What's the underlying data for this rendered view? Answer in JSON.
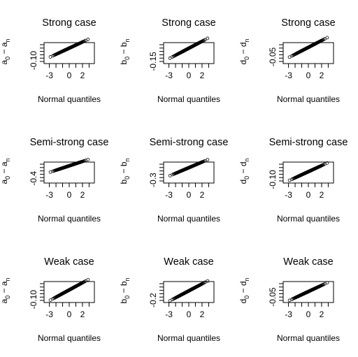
{
  "chart_data": [
    {
      "type": "scatter",
      "title": "Strong case",
      "xlabel": "Normal quantiles",
      "ylabel": "a0 - an",
      "ylabel_main": "a",
      "ylabel_sub0": "0",
      "ylabel_minus": " − ",
      "ylabel_sub1": "n",
      "x_ticks": [
        "-3",
        "0",
        "2"
      ],
      "y_ticks": [
        "-0.10"
      ],
      "xlim": [
        -3.8,
        3.8
      ],
      "ylim": [
        -0.125,
        0.045
      ],
      "y_tick_values": [
        -0.1
      ],
      "n_points": 220,
      "center": 0.0,
      "scale": 0.025
    },
    {
      "type": "scatter",
      "title": "Strong case",
      "xlabel": "Normal quantiles",
      "ylabel": "b0 - bn",
      "ylabel_main": "b",
      "ylabel_sub0": "0",
      "ylabel_minus": " − ",
      "ylabel_sub1": "n",
      "x_ticks": [
        "-3",
        "0",
        "2"
      ],
      "y_ticks": [
        "-0.15"
      ],
      "xlim": [
        -3.8,
        3.8
      ],
      "ylim": [
        -0.175,
        0.065
      ],
      "y_tick_values": [
        -0.15
      ],
      "n_points": 220,
      "center": 0.0,
      "scale": 0.04
    },
    {
      "type": "scatter",
      "title": "Strong case",
      "xlabel": "Normal quantiles",
      "ylabel": "d0 - dn",
      "ylabel_main": "d",
      "ylabel_sub0": "0",
      "ylabel_minus": " − ",
      "ylabel_sub1": "n",
      "x_ticks": [
        "-3",
        "0",
        "2"
      ],
      "y_ticks": [
        "-0.05"
      ],
      "xlim": [
        -3.8,
        3.8
      ],
      "ylim": [
        -0.085,
        0.025
      ],
      "y_tick_values": [
        -0.05
      ],
      "n_points": 220,
      "center": 0.0,
      "scale": 0.018
    },
    {
      "type": "scatter",
      "title": "Semi-strong case",
      "xlabel": "Normal quantiles",
      "ylabel": "a0 - an",
      "ylabel_main": "a",
      "ylabel_sub0": "0",
      "ylabel_minus": " − ",
      "ylabel_sub1": "n",
      "x_ticks": [
        "-3",
        "0",
        "2"
      ],
      "y_ticks": [
        "-0.4"
      ],
      "xlim": [
        -3.8,
        3.8
      ],
      "ylim": [
        -0.55,
        0.12
      ],
      "y_tick_values": [
        -0.4
      ],
      "n_points": 220,
      "center": 0.0,
      "scale": 0.07
    },
    {
      "type": "scatter",
      "title": "Semi-strong case",
      "xlabel": "Normal quantiles",
      "ylabel": "b0 - bn",
      "ylabel_main": "b",
      "ylabel_sub0": "0",
      "ylabel_minus": " − ",
      "ylabel_sub1": "n",
      "x_ticks": [
        "-3",
        "0",
        "2"
      ],
      "y_ticks": [
        "-0.3"
      ],
      "xlim": [
        -3.8,
        3.8
      ],
      "ylim": [
        -0.36,
        0.05
      ],
      "y_tick_values": [
        -0.3
      ],
      "n_points": 220,
      "center": -0.06,
      "scale": 0.055
    },
    {
      "type": "scatter",
      "title": "Semi-strong case",
      "xlabel": "Normal quantiles",
      "ylabel": "d0 - dn",
      "ylabel_main": "d",
      "ylabel_sub0": "0",
      "ylabel_minus": " − ",
      "ylabel_sub1": "n",
      "x_ticks": [
        "-3",
        "0",
        "2"
      ],
      "y_ticks": [
        "-0.10"
      ],
      "xlim": [
        -3.8,
        3.8
      ],
      "ylim": [
        -0.14,
        0.1
      ],
      "y_tick_values": [
        -0.1
      ],
      "n_points": 220,
      "center": -0.01,
      "scale": 0.035
    },
    {
      "type": "scatter",
      "title": "Weak case",
      "xlabel": "Normal quantiles",
      "ylabel": "a0 - an",
      "ylabel_main": "a",
      "ylabel_sub0": "0",
      "ylabel_minus": " − ",
      "ylabel_sub1": "n",
      "x_ticks": [
        "-3",
        "0",
        "2"
      ],
      "y_ticks": [
        "-0.10"
      ],
      "xlim": [
        -3.8,
        3.8
      ],
      "ylim": [
        -0.125,
        0.05
      ],
      "y_tick_values": [
        -0.1
      ],
      "n_points": 220,
      "center": -0.02,
      "scale": 0.03
    },
    {
      "type": "scatter",
      "title": "Weak case",
      "xlabel": "Normal quantiles",
      "ylabel": "b0 - bn",
      "ylabel_main": "b",
      "ylabel_sub0": "0",
      "ylabel_minus": " − ",
      "ylabel_sub1": "n",
      "x_ticks": [
        "-3",
        "0",
        "2"
      ],
      "y_ticks": [
        "-0.2"
      ],
      "xlim": [
        -3.8,
        3.8
      ],
      "ylim": [
        -0.24,
        0.12
      ],
      "y_tick_values": [
        -0.2
      ],
      "n_points": 220,
      "center": -0.04,
      "scale": 0.06
    },
    {
      "type": "scatter",
      "title": "Weak case",
      "xlabel": "Normal quantiles",
      "ylabel": "d0 - dn",
      "ylabel_main": "d",
      "ylabel_sub0": "0",
      "ylabel_minus": " − ",
      "ylabel_sub1": "n",
      "x_ticks": [
        "-3",
        "0",
        "2"
      ],
      "y_ticks": [
        "-0.05"
      ],
      "xlim": [
        -3.8,
        3.8
      ],
      "ylim": [
        -0.08,
        0.035
      ],
      "y_tick_values": [
        -0.05
      ],
      "n_points": 220,
      "center": -0.02,
      "scale": 0.017
    }
  ]
}
